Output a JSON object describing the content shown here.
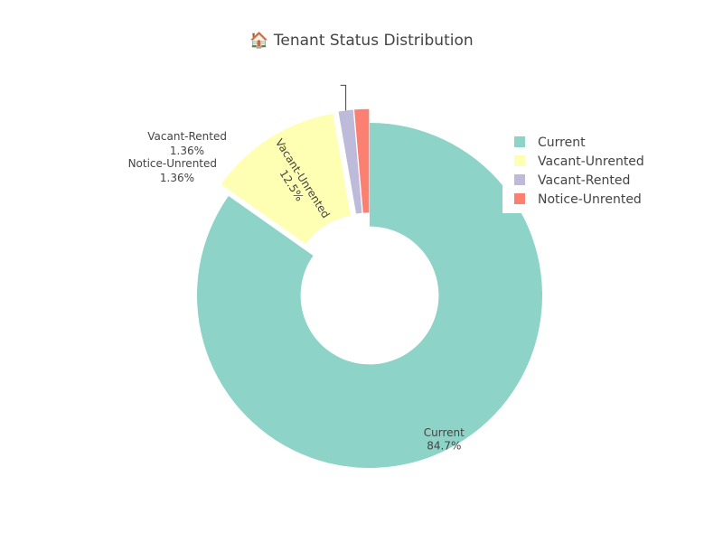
{
  "chart_data": {
    "type": "pie",
    "hole": 0.4,
    "title": "🏠 Tenant Status Distribution",
    "legend_position": "top-right",
    "slices": [
      {
        "label": "Current",
        "value": 84.7,
        "percent_text": "84.7%",
        "color": "#8dd3c7",
        "pulled": false
      },
      {
        "label": "Vacant-Unrented",
        "value": 12.5,
        "percent_text": "12.5%",
        "color": "#ffffb3",
        "pulled": true
      },
      {
        "label": "Vacant-Rented",
        "value": 1.36,
        "percent_text": "1.36%",
        "color": "#bebada",
        "pulled": true
      },
      {
        "label": "Notice-Unrented",
        "value": 1.36,
        "percent_text": "1.36%",
        "color": "#fb8072",
        "pulled": true
      }
    ]
  }
}
